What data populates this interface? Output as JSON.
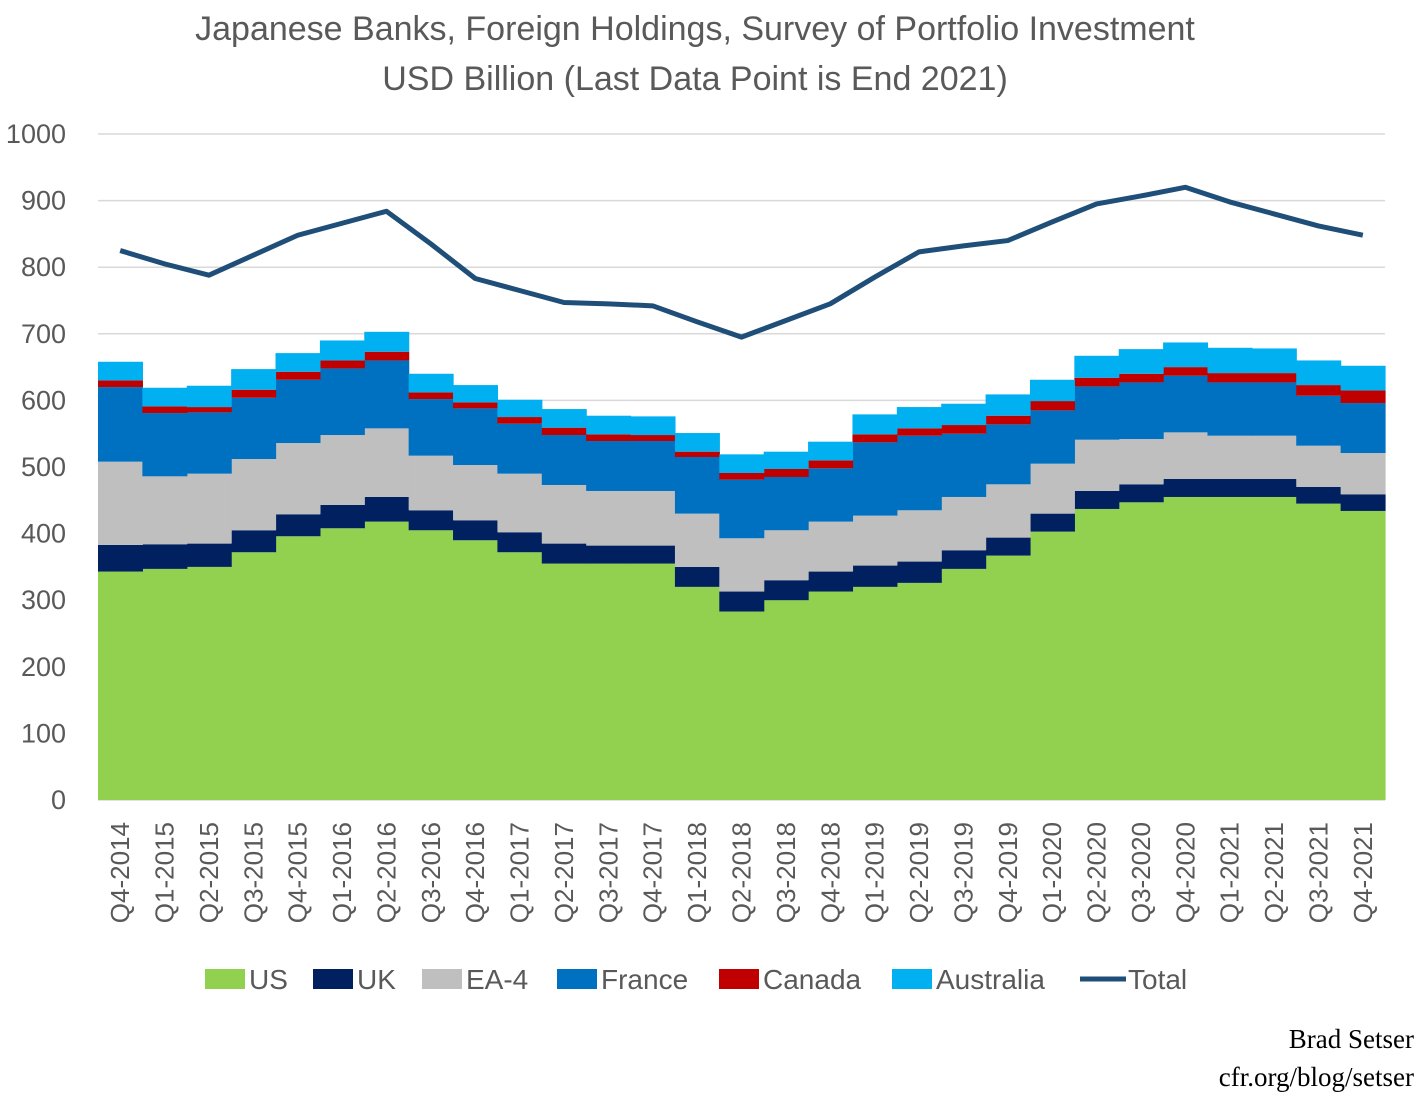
{
  "chart_data": {
    "type": "area",
    "title": "Japanese Banks, Foreign Holdings, Survey of Portfolio Investment",
    "subtitle": "USD Billion (Last Data Point is End 2021)",
    "xlabel": "",
    "ylabel": "",
    "ylim": [
      0,
      1000
    ],
    "yticks": [
      0,
      100,
      200,
      300,
      400,
      500,
      600,
      700,
      800,
      900,
      1000
    ],
    "grid": true,
    "legend_position": "bottom",
    "stacked": true,
    "categories": [
      "Q4-2014",
      "Q1-2015",
      "Q2-2015",
      "Q3-2015",
      "Q4-2015",
      "Q1-2016",
      "Q2-2016",
      "Q3-2016",
      "Q4-2016",
      "Q1-2017",
      "Q2-2017",
      "Q3-2017",
      "Q4-2017",
      "Q1-2018",
      "Q2-2018",
      "Q3-2018",
      "Q4-2018",
      "Q1-2019",
      "Q2-2019",
      "Q3-2019",
      "Q4-2019",
      "Q1-2020",
      "Q2-2020",
      "Q3-2020",
      "Q4-2020",
      "Q1-2021",
      "Q2-2021",
      "Q3-2021",
      "Q4-2021"
    ],
    "series": [
      {
        "name": "US",
        "color": "#92D050",
        "values": [
          343,
          347,
          350,
          372,
          396,
          408,
          418,
          405,
          390,
          372,
          355,
          355,
          355,
          320,
          283,
          300,
          313,
          320,
          326,
          347,
          367,
          403,
          437,
          447,
          455,
          455,
          455,
          445,
          434
        ]
      },
      {
        "name": "UK",
        "color": "#002060",
        "values": [
          40,
          37,
          35,
          33,
          33,
          35,
          37,
          30,
          30,
          30,
          30,
          27,
          27,
          30,
          30,
          30,
          30,
          32,
          32,
          28,
          27,
          27,
          27,
          27,
          27,
          27,
          27,
          25,
          25
        ]
      },
      {
        "name": "EA-4",
        "color": "#BFBFBF",
        "values": [
          125,
          102,
          105,
          107,
          107,
          105,
          103,
          82,
          83,
          88,
          88,
          82,
          82,
          80,
          80,
          75,
          75,
          75,
          77,
          80,
          80,
          75,
          77,
          68,
          70,
          65,
          65,
          62,
          62
        ]
      },
      {
        "name": "France",
        "color": "#0070C0",
        "values": [
          112,
          95,
          92,
          92,
          95,
          100,
          102,
          85,
          85,
          75,
          75,
          75,
          75,
          85,
          88,
          80,
          80,
          110,
          112,
          95,
          90,
          80,
          80,
          85,
          85,
          80,
          80,
          75,
          75
        ]
      },
      {
        "name": "Canada",
        "color": "#C00000",
        "values": [
          10,
          10,
          8,
          12,
          12,
          12,
          13,
          10,
          9,
          10,
          11,
          10,
          9,
          8,
          10,
          12,
          12,
          12,
          11,
          13,
          13,
          14,
          13,
          13,
          13,
          14,
          14,
          16,
          19
        ]
      },
      {
        "name": "Australia",
        "color": "#00B0F0",
        "values": [
          28,
          28,
          32,
          31,
          28,
          30,
          30,
          28,
          26,
          26,
          28,
          28,
          28,
          28,
          28,
          26,
          28,
          30,
          32,
          32,
          32,
          32,
          33,
          37,
          37,
          38,
          37,
          37,
          37
        ]
      },
      {
        "name": "Total",
        "color": "#1F4E79",
        "kind": "line",
        "values": [
          825,
          805,
          788,
          818,
          848,
          866,
          884,
          835,
          783,
          765,
          747,
          745,
          742,
          718,
          695,
          720,
          745,
          785,
          823,
          832,
          840,
          868,
          895,
          907,
          920,
          898,
          880,
          862,
          848
        ]
      }
    ]
  },
  "credit": {
    "author": "Brad Setser",
    "url": "cfr.org/blog/setser"
  }
}
